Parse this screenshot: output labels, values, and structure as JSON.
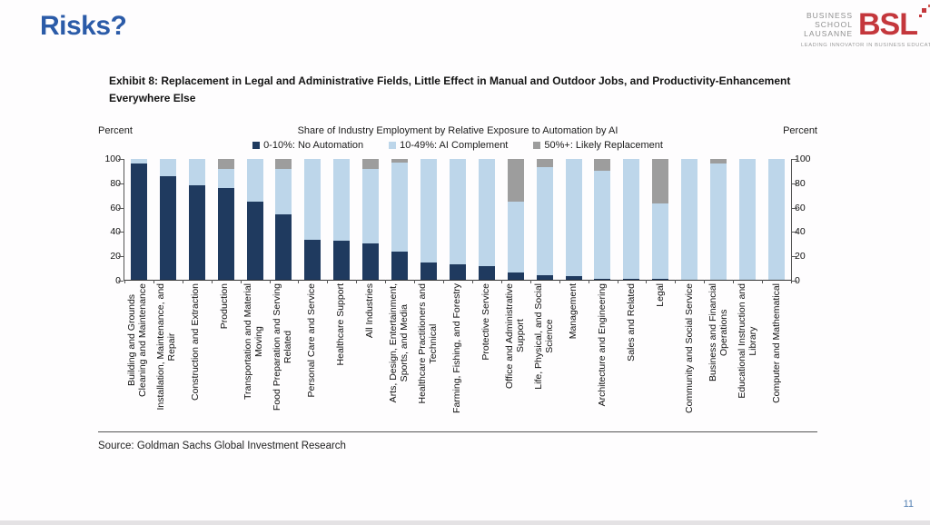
{
  "slide": {
    "title": "Risks?",
    "page_number": "11"
  },
  "logo": {
    "school_lines": [
      "BUSINESS",
      "SCHOOL",
      "LAUSANNE"
    ],
    "acronym": "BSL",
    "tagline": "LEADING INNOVATOR IN BUSINESS EDUCATION",
    "accent_color": "#c4373c"
  },
  "exhibit": {
    "heading": "Exhibit 8: Replacement in Legal and Administrative Fields, Little Effect in Manual and Outdoor Jobs, and Productivity-Enhancement\nEverywhere Else",
    "source": "Source: Goldman Sachs Global Investment Research"
  },
  "chart_data": {
    "type": "bar",
    "stacked": true,
    "title": "Share of Industry Employment by Relative Exposure to Automation by AI",
    "left_axis_label": "Percent",
    "right_axis_label": "Percent",
    "ylim": [
      0,
      100
    ],
    "yticks": [
      0,
      20,
      40,
      60,
      80,
      100
    ],
    "grid": false,
    "legend_position": "top",
    "categories": [
      "Building and Grounds\nCleaning and Maintenance",
      "Installation, Maintenance, and\nRepair",
      "Construction and Extraction",
      "Production",
      "Transportation and Material\nMoving",
      "Food Preparation and Serving\nRelated",
      "Personal Care and Service",
      "Healthcare Support",
      "All Industries",
      "Arts, Design, Entertainment,\nSports, and Media",
      "Healthcare Practitioners and\nTechnical",
      "Farming, Fishing, and Forestry",
      "Protective Service",
      "Office and Administrative\nSupport",
      "Life, Physical, and Social\nScience",
      "Management",
      "Architecture and Engineering",
      "Sales and Related",
      "Legal",
      "Community and Social Service",
      "Business and Financial\nOperations",
      "Educational Instruction and\nLibrary",
      "Computer and Mathematical"
    ],
    "series": [
      {
        "name": "0-10%: No Automation",
        "color": "#1f3a5f",
        "values": [
          96,
          86,
          78,
          76,
          65,
          54,
          33,
          32,
          30,
          23,
          14,
          13,
          11,
          6,
          4,
          3,
          1,
          1,
          1,
          0,
          0,
          0,
          0
        ]
      },
      {
        "name": "10-49%: AI Complement",
        "color": "#bdd6ea",
        "values": [
          4,
          14,
          22,
          16,
          35,
          38,
          67,
          68,
          62,
          74,
          86,
          87,
          89,
          59,
          89,
          97,
          89,
          99,
          62,
          100,
          96,
          100,
          100
        ]
      },
      {
        "name": "50%+: Likely Replacement",
        "color": "#9d9d9d",
        "values": [
          0,
          0,
          0,
          8,
          0,
          8,
          0,
          0,
          8,
          3,
          0,
          0,
          0,
          35,
          7,
          0,
          10,
          0,
          37,
          0,
          4,
          0,
          0
        ]
      }
    ]
  }
}
